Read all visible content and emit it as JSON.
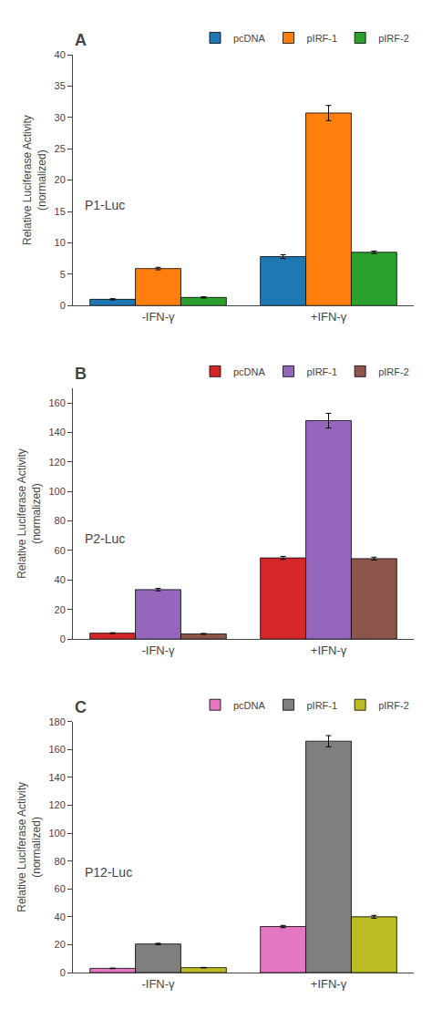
{
  "chart_data": [
    {
      "type": "bar",
      "title": "A",
      "subtitle": "P1-Luc",
      "ylabel": "Relative Luciferase Activity\n(normalized)",
      "categories": [
        "-IFN-γ",
        "+IFN-γ"
      ],
      "series": [
        {
          "name": "pcDNA",
          "values": [
            1.0,
            7.8
          ],
          "errors": [
            0.1,
            0.3
          ]
        },
        {
          "name": "pIRF-1",
          "values": [
            5.9,
            30.7
          ],
          "errors": [
            0.2,
            1.2
          ]
        },
        {
          "name": "pIRF-2",
          "values": [
            1.3,
            8.5
          ],
          "errors": [
            0.1,
            0.2
          ]
        }
      ],
      "ylim": [
        0,
        40
      ],
      "yticks": [
        0,
        5,
        10,
        15,
        20,
        25,
        30,
        35,
        40
      ],
      "grid": false,
      "legend": "upper right"
    },
    {
      "type": "bar",
      "title": "B",
      "subtitle": "P2-Luc",
      "ylabel": "Relative Luciferase Activity\n(normalized)",
      "categories": [
        "-IFN-γ",
        "+IFN-γ"
      ],
      "series": [
        {
          "name": "pcDNA",
          "values": [
            4.0,
            55.0
          ],
          "errors": [
            0.3,
            1.0
          ]
        },
        {
          "name": "pIRF-1",
          "values": [
            33.5,
            148.0
          ],
          "errors": [
            0.8,
            5.0
          ]
        },
        {
          "name": "pIRF-2",
          "values": [
            3.5,
            54.5
          ],
          "errors": [
            0.3,
            1.0
          ]
        }
      ],
      "ylim": [
        0,
        170
      ],
      "yticks": [
        0,
        20,
        40,
        60,
        80,
        100,
        120,
        140,
        160
      ],
      "grid": false,
      "legend": "upper right"
    },
    {
      "type": "bar",
      "title": "C",
      "subtitle": "P12-Luc",
      "ylabel": "Relative Luciferase Activity\n(normalized)",
      "categories": [
        "-IFN-γ",
        "+IFN-γ"
      ],
      "series": [
        {
          "name": "pcDNA",
          "values": [
            3.0,
            33.0
          ],
          "errors": [
            0.2,
            0.8
          ]
        },
        {
          "name": "pIRF-1",
          "values": [
            20.5,
            166.0
          ],
          "errors": [
            0.5,
            4.0
          ]
        },
        {
          "name": "pIRF-2",
          "values": [
            3.5,
            40.0
          ],
          "errors": [
            0.2,
            1.0
          ]
        }
      ],
      "ylim": [
        0,
        180
      ],
      "yticks": [
        0,
        20,
        40,
        60,
        80,
        100,
        120,
        140,
        160,
        180
      ],
      "grid": false,
      "legend": "upper right"
    }
  ]
}
